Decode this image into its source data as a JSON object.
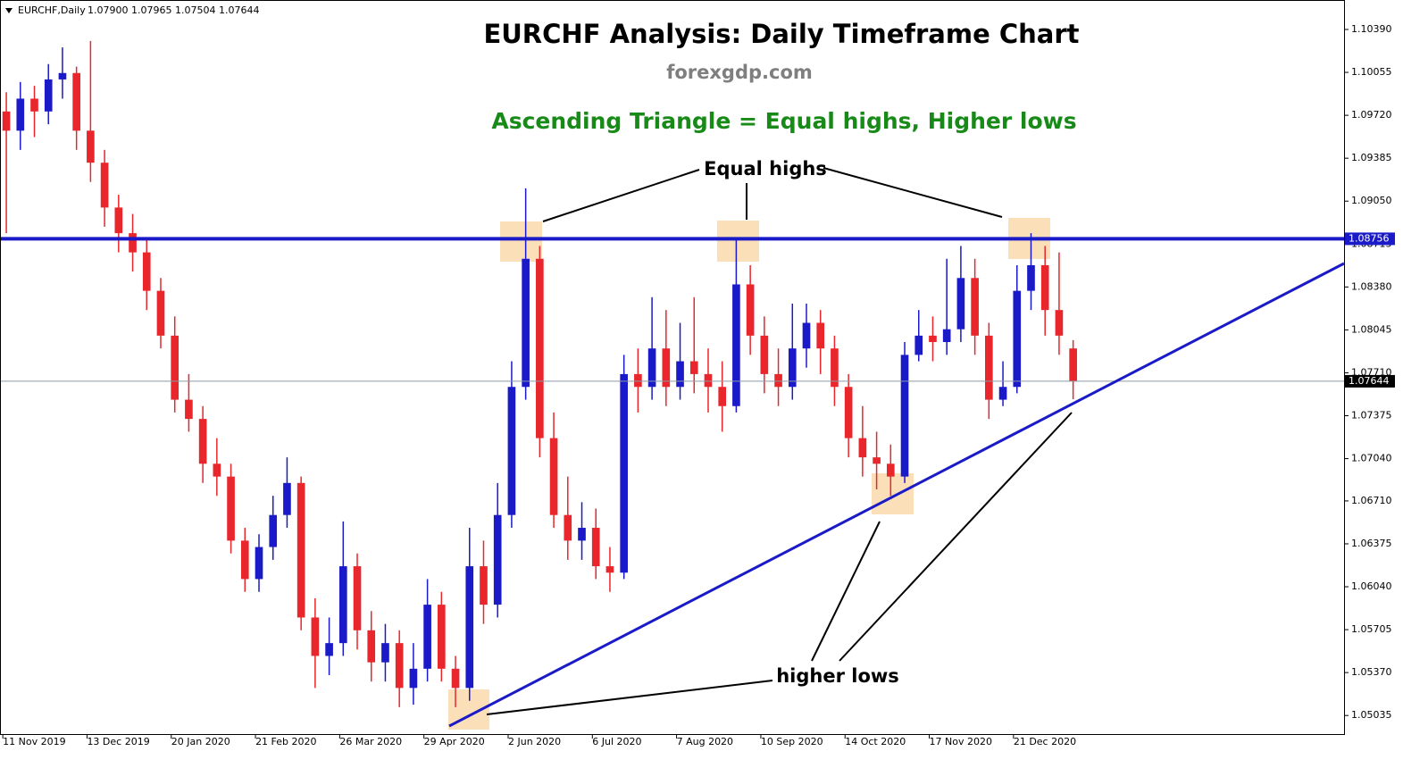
{
  "chart_data": {
    "type": "candlestick",
    "header": {
      "symbol": "EURCHF,Daily",
      "ohlc": [
        "1.07900",
        "1.07965",
        "1.07504",
        "1.07644"
      ]
    },
    "title": "EURCHF Analysis: Daily Timeframe Chart",
    "subtitle": "forexgdp.com",
    "pattern_note": "Ascending Triangle = Equal highs, Higher lows",
    "annotations": [
      "Equal highs",
      "higher lows"
    ],
    "up_color": "#1a1ac8",
    "down_color": "#e8262b",
    "level_color": "#1a1ac8",
    "resistance_level": 1.08756,
    "last_price": 1.07644,
    "xlim": [
      -0.8,
      382.2
    ],
    "ylim": [
      1.0489,
      1.1062
    ],
    "xticks": [
      {
        "value": 0,
        "label": "11 Nov 2019"
      },
      {
        "value": 24,
        "label": "13 Dec 2019"
      },
      {
        "value": 48,
        "label": "20 Jan 2020"
      },
      {
        "value": 72,
        "label": "21 Feb 2020"
      },
      {
        "value": 96,
        "label": "26 Mar 2020"
      },
      {
        "value": 120,
        "label": "29 Apr 2020"
      },
      {
        "value": 144,
        "label": "2 Jun 2020"
      },
      {
        "value": 168,
        "label": "6 Jul 2020"
      },
      {
        "value": 192,
        "label": "7 Aug 2020"
      },
      {
        "value": 216,
        "label": "10 Sep 2020"
      },
      {
        "value": 240,
        "label": "14 Oct 2020"
      },
      {
        "value": 264,
        "label": "17 Nov 2020"
      },
      {
        "value": 288,
        "label": "21 Dec 2020"
      }
    ],
    "yticks": [
      {
        "value": 1.1039,
        "label": "1.10390"
      },
      {
        "value": 1.10055,
        "label": "1.10055"
      },
      {
        "value": 1.0972,
        "label": "1.09720"
      },
      {
        "value": 1.09385,
        "label": "1.09385"
      },
      {
        "value": 1.0905,
        "label": "1.09050"
      },
      {
        "value": 1.08715,
        "label": "1.08715"
      },
      {
        "value": 1.0838,
        "label": "1.08380"
      },
      {
        "value": 1.08045,
        "label": "1.08045"
      },
      {
        "value": 1.0771,
        "label": "1.07710"
      },
      {
        "value": 1.07375,
        "label": "1.07375"
      },
      {
        "value": 1.0704,
        "label": "1.07040"
      },
      {
        "value": 1.0671,
        "label": "1.06710"
      },
      {
        "value": 1.06375,
        "label": "1.06375"
      },
      {
        "value": 1.0604,
        "label": "1.06040"
      },
      {
        "value": 1.05705,
        "label": "1.05705"
      },
      {
        "value": 1.0537,
        "label": "1.05370"
      },
      {
        "value": 1.05035,
        "label": "1.05035"
      }
    ],
    "x": [
      1,
      5,
      9,
      13,
      17,
      21,
      25,
      29,
      33,
      37,
      41,
      45,
      49,
      53,
      57,
      61,
      65,
      69,
      73,
      77,
      81,
      85,
      89,
      93,
      97,
      101,
      105,
      109,
      113,
      117,
      121,
      125,
      129,
      133,
      137,
      141,
      145,
      149,
      153,
      157,
      161,
      165,
      169,
      173,
      177,
      181,
      185,
      189,
      193,
      197,
      201,
      205,
      209,
      213,
      217,
      221,
      225,
      229,
      233,
      237,
      241,
      245,
      249,
      253,
      257,
      261,
      265,
      269,
      273,
      277,
      281,
      285,
      289,
      293,
      297,
      301,
      305
    ],
    "open": [
      1.0975,
      1.096,
      1.0985,
      1.0975,
      1.1,
      1.1005,
      1.096,
      1.0935,
      1.09,
      1.088,
      1.0865,
      1.0835,
      1.08,
      1.075,
      1.0735,
      1.07,
      1.069,
      1.064,
      1.061,
      1.0635,
      1.066,
      1.0685,
      1.058,
      1.055,
      1.056,
      1.062,
      1.057,
      1.0545,
      1.056,
      1.0525,
      1.054,
      1.059,
      1.054,
      1.0525,
      1.062,
      1.059,
      1.066,
      1.076,
      1.086,
      1.072,
      1.066,
      1.064,
      1.065,
      1.062,
      1.0615,
      1.077,
      1.076,
      1.079,
      1.076,
      1.078,
      1.077,
      1.076,
      1.0745,
      1.084,
      1.08,
      1.077,
      1.076,
      1.079,
      1.081,
      1.079,
      1.076,
      1.072,
      1.0705,
      1.07,
      1.069,
      1.0785,
      1.08,
      1.0795,
      1.0805,
      1.0845,
      1.08,
      1.075,
      1.076,
      1.0835,
      1.0855,
      1.082,
      1.079
    ],
    "high": [
      1.099,
      1.0998,
      1.0995,
      1.1012,
      1.1025,
      1.101,
      1.103,
      1.0945,
      1.091,
      1.0895,
      1.0875,
      1.0845,
      1.0815,
      1.077,
      1.0745,
      1.072,
      1.07,
      1.065,
      1.0645,
      1.0675,
      1.0705,
      1.069,
      1.0595,
      1.058,
      1.0655,
      1.063,
      1.0585,
      1.0575,
      1.057,
      1.056,
      1.061,
      1.06,
      1.055,
      1.065,
      1.064,
      1.0685,
      1.078,
      1.0915,
      1.087,
      1.074,
      1.069,
      1.067,
      1.0665,
      1.0635,
      1.0785,
      1.079,
      1.083,
      1.082,
      1.081,
      1.083,
      1.079,
      1.078,
      1.0875,
      1.0855,
      1.0815,
      1.079,
      1.0825,
      1.0825,
      1.082,
      1.08,
      1.077,
      1.0745,
      1.0725,
      1.0715,
      1.0795,
      1.082,
      1.0815,
      1.086,
      1.087,
      1.086,
      1.081,
      1.078,
      1.0855,
      1.088,
      1.087,
      1.0865,
      1.07965
    ],
    "low": [
      1.088,
      1.0945,
      1.0955,
      1.0965,
      1.0985,
      1.0945,
      1.092,
      1.0885,
      1.0865,
      1.085,
      1.082,
      1.079,
      1.074,
      1.0725,
      1.0685,
      1.0675,
      1.063,
      1.06,
      1.06,
      1.0625,
      1.065,
      1.057,
      1.0525,
      1.0535,
      1.055,
      1.0555,
      1.053,
      1.053,
      1.051,
      1.0512,
      1.053,
      1.053,
      1.051,
      1.0515,
      1.0575,
      1.058,
      1.065,
      1.075,
      1.0705,
      1.065,
      1.0625,
      1.0625,
      1.061,
      1.06,
      1.061,
      1.074,
      1.075,
      1.0745,
      1.075,
      1.0755,
      1.074,
      1.0725,
      1.074,
      1.0785,
      1.0755,
      1.0745,
      1.075,
      1.0775,
      1.077,
      1.0745,
      1.0705,
      1.069,
      1.068,
      1.0675,
      1.0685,
      1.078,
      1.078,
      1.0785,
      1.0795,
      1.0785,
      1.0735,
      1.0745,
      1.0755,
      1.082,
      1.08,
      1.0785,
      1.07504
    ],
    "close": [
      1.096,
      1.0985,
      1.0975,
      1.1,
      1.1005,
      1.096,
      1.0935,
      1.09,
      1.088,
      1.0865,
      1.0835,
      1.08,
      1.075,
      1.0735,
      1.07,
      1.069,
      1.064,
      1.061,
      1.0635,
      1.066,
      1.0685,
      1.058,
      1.055,
      1.056,
      1.062,
      1.057,
      1.0545,
      1.056,
      1.0525,
      1.054,
      1.059,
      1.054,
      1.0525,
      1.062,
      1.059,
      1.066,
      1.076,
      1.086,
      1.072,
      1.066,
      1.064,
      1.065,
      1.062,
      1.0615,
      1.077,
      1.076,
      1.079,
      1.076,
      1.078,
      1.077,
      1.076,
      1.0745,
      1.084,
      1.08,
      1.077,
      1.076,
      1.079,
      1.081,
      1.079,
      1.076,
      1.072,
      1.0705,
      1.07,
      1.069,
      1.0785,
      1.08,
      1.0795,
      1.0805,
      1.0845,
      1.08,
      1.075,
      1.076,
      1.0835,
      1.0855,
      1.082,
      1.08,
      1.07644
    ]
  }
}
